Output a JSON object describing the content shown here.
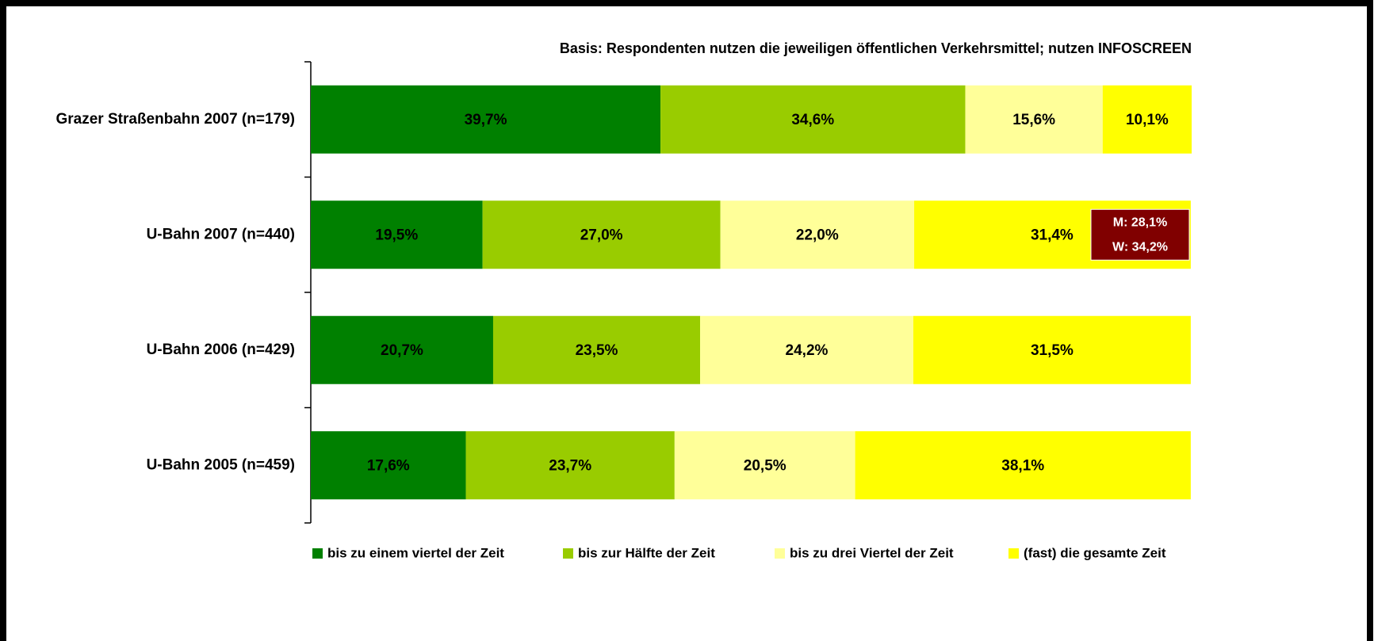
{
  "chart_data": {
    "type": "stacked_barh",
    "subtitle": "Basis: Respondenten nutzen die jeweiligen öffentlichen Verkehrsmittel; nutzen INFOSCREEN",
    "categories": [
      "Grazer Straßenbahn 2007 (n=179)",
      "U-Bahn 2007 (n=440)",
      "U-Bahn 2006 (n=429)",
      "U-Bahn 2005 (n=459)"
    ],
    "xlim": [
      0,
      100
    ],
    "legend": "bottom",
    "series": [
      {
        "name": "bis zu einem viertel der Zeit",
        "color": "#008000",
        "values": [
          39.7,
          19.5,
          20.7,
          17.6
        ],
        "value_labels": [
          "39,7%",
          "19,5%",
          "20,7%",
          "17,6%"
        ]
      },
      {
        "name": "bis zur Hälfte der Zeit",
        "color": "#99cc00",
        "values": [
          34.6,
          27.0,
          23.5,
          23.7
        ],
        "value_labels": [
          "34,6%",
          "27,0%",
          "23,5%",
          "23,7%"
        ]
      },
      {
        "name": "bis zu drei Viertel der Zeit",
        "color": "#ffff99",
        "values": [
          15.6,
          22.0,
          24.2,
          20.5
        ],
        "value_labels": [
          "15,6%",
          "22,0%",
          "24,2%",
          "20,5%"
        ]
      },
      {
        "name": "(fast) die gesamte Zeit",
        "color": "#ffff00",
        "values": [
          10.1,
          31.4,
          31.5,
          38.1
        ],
        "value_labels": [
          "10,1%",
          "31,4%",
          "31,5%",
          "38,1%"
        ]
      }
    ],
    "annotations": [
      "M: 28,1%",
      "W: 34,2%"
    ]
  }
}
